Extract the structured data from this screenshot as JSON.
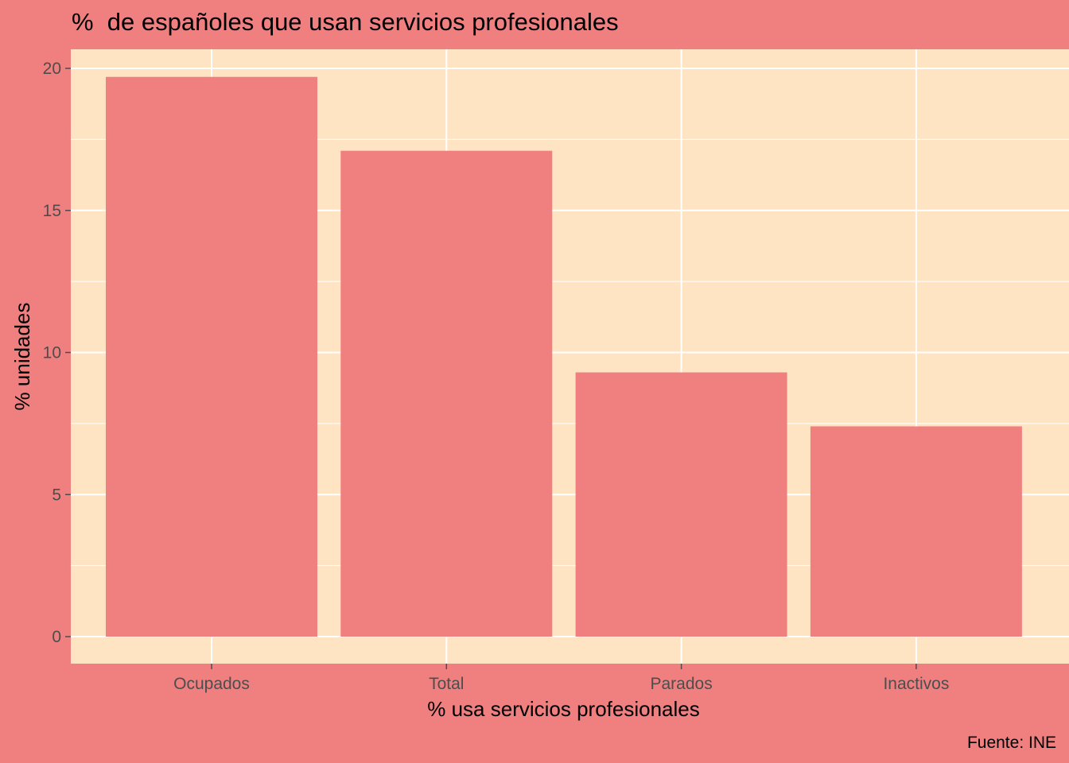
{
  "chart_data": {
    "type": "bar",
    "title": "%  de españoles que usan servicios profesionales",
    "xlabel": "%  usa servicios profesionales",
    "ylabel": "% unidades",
    "caption": "Fuente: INE",
    "categories": [
      "Ocupados",
      "Total",
      "Parados",
      "Inactivos"
    ],
    "values": [
      19.7,
      17.1,
      9.3,
      7.4
    ],
    "ylim": [
      0,
      20
    ],
    "yticks": [
      0,
      5,
      10,
      15,
      20
    ],
    "grid": true,
    "colors": {
      "background": "#F08080",
      "panel": "#FFE4C4",
      "bar": "#F08080",
      "grid": "#FFFFFF"
    }
  }
}
